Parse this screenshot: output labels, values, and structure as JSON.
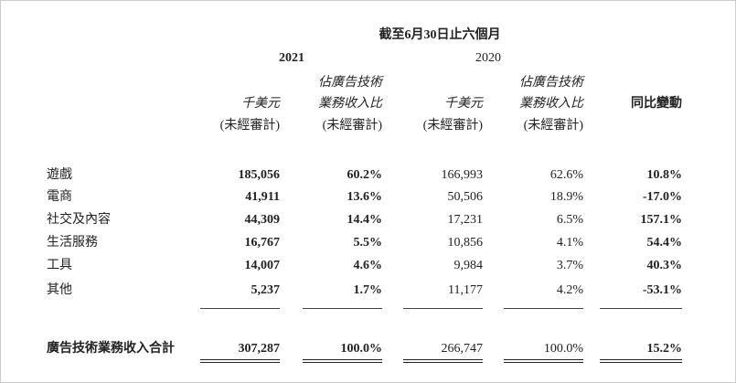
{
  "header": {
    "period": "截至6月30日止六個月",
    "years": [
      "2021",
      "2020"
    ],
    "columns": [
      [
        "千美元",
        "(未經審計)"
      ],
      [
        "佔廣告技術",
        "業務收入比",
        "(未經審計)"
      ],
      [
        "千美元",
        "(未經審計)"
      ],
      [
        "佔廣告技術",
        "業務收入比",
        "(未經審計)"
      ],
      [
        "同比變動"
      ]
    ]
  },
  "table": {
    "rows": [
      [
        "遊戲",
        "185,056",
        "60.2%",
        "166,993",
        "62.6%",
        "10.8%"
      ],
      [
        "電商",
        "41,911",
        "13.6%",
        "50,506",
        "18.9%",
        "-17.0%"
      ],
      [
        "社交及內容",
        "44,309",
        "14.4%",
        "17,231",
        "6.5%",
        "157.1%"
      ],
      [
        "生活服務",
        "16,767",
        "5.5%",
        "10,856",
        "4.1%",
        "54.4%"
      ],
      [
        "工具",
        "14,007",
        "4.6%",
        "9,984",
        "3.7%",
        "40.3%"
      ],
      [
        "其他",
        "5,237",
        "1.7%",
        "11,177",
        "4.2%",
        "-53.1%"
      ]
    ],
    "total": [
      "廣告技術業務收入合計",
      "307,287",
      "100.0%",
      "266,747",
      "100.0%",
      "15.2%"
    ]
  }
}
